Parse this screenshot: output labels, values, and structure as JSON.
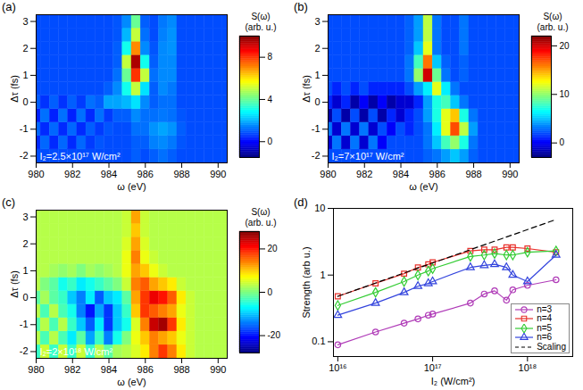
{
  "chart_data": [
    {
      "type": "heatmap",
      "panel_label": "(a)",
      "annotation": "I₂=2.5×10¹⁷ W/cm²",
      "x_label": "ω (eV)",
      "y_label": "Δτ (fs)",
      "xlim": [
        980,
        990.5
      ],
      "ylim": [
        -2.25,
        3.25
      ],
      "xticks": [
        980,
        982,
        984,
        986,
        988,
        990
      ],
      "yticks": [
        -2,
        -1,
        0,
        1,
        2,
        3
      ],
      "color": "jet",
      "x_edges": [
        979.75,
        980.25,
        980.75,
        981.25,
        981.75,
        982.25,
        982.75,
        983.25,
        983.75,
        984.25,
        984.75,
        985.25,
        985.75,
        986.25,
        986.75,
        987.25,
        987.75,
        988.25,
        988.75,
        989.25,
        989.75,
        990.25,
        990.75
      ],
      "y_edges": [
        -2.25,
        -1.75,
        -1.25,
        -0.75,
        -0.25,
        0.25,
        0.75,
        1.25,
        1.75,
        2.25,
        2.75,
        3.25
      ],
      "cells": [
        [
          0.8,
          0.8,
          0.8,
          0.8,
          0.8,
          0.8,
          0.8,
          0.8,
          0.8,
          0.8,
          0.8,
          1.0,
          0.8,
          1.0,
          1.2,
          1.0,
          0.8,
          0.8,
          0.8,
          0.8,
          0.8,
          0.8
        ],
        [
          0.4,
          1.1,
          0.4,
          1.1,
          0.4,
          1.1,
          0.6,
          0.9,
          0.8,
          0.8,
          0.8,
          1.0,
          1.0,
          1.4,
          1.5,
          1.3,
          0.9,
          0.8,
          0.8,
          0.8,
          0.8,
          0.8
        ],
        [
          1.1,
          0.4,
          1.1,
          0.4,
          1.1,
          0.4,
          1.0,
          0.6,
          0.9,
          0.8,
          0.8,
          1.2,
          1.2,
          1.6,
          1.8,
          1.6,
          1.0,
          0.8,
          0.8,
          0.8,
          0.8,
          0.8
        ],
        [
          0.3,
          1.2,
          0.3,
          1.2,
          0.3,
          1.2,
          0.4,
          1.2,
          0.6,
          1.0,
          1.0,
          1.5,
          1.2,
          1.2,
          1.3,
          1.2,
          0.9,
          0.8,
          0.8,
          0.8,
          0.8,
          0.8
        ],
        [
          1.0,
          0.5,
          1.0,
          0.5,
          1.0,
          0.6,
          1.2,
          1.0,
          1.8,
          1.8,
          2.0,
          2.5,
          1.5,
          1.0,
          1.2,
          1.2,
          0.8,
          0.8,
          0.8,
          0.8,
          0.8,
          0.8
        ],
        [
          0.8,
          0.8,
          0.8,
          0.8,
          0.8,
          0.8,
          0.8,
          0.8,
          1.0,
          1.5,
          3.0,
          5.0,
          2.5,
          1.0,
          1.5,
          1.3,
          0.8,
          0.8,
          0.8,
          0.8,
          0.8,
          0.8
        ],
        [
          0.8,
          0.8,
          0.8,
          0.8,
          0.8,
          0.8,
          0.8,
          0.8,
          0.8,
          1.2,
          4.0,
          8.0,
          5.0,
          1.2,
          1.5,
          1.5,
          0.8,
          0.8,
          0.8,
          0.8,
          0.8,
          0.8
        ],
        [
          0.8,
          0.8,
          0.8,
          0.8,
          0.8,
          0.8,
          0.8,
          0.8,
          0.8,
          1.0,
          5.0,
          9.5,
          3.0,
          1.0,
          1.5,
          1.5,
          0.8,
          0.8,
          0.8,
          0.8,
          0.8,
          0.8
        ],
        [
          0.8,
          0.8,
          0.8,
          0.8,
          0.8,
          0.8,
          0.8,
          0.8,
          0.8,
          1.0,
          3.0,
          7.0,
          1.5,
          0.9,
          1.5,
          1.6,
          0.8,
          0.8,
          0.8,
          0.8,
          0.8,
          0.8
        ],
        [
          0.8,
          0.8,
          0.8,
          0.8,
          0.8,
          0.8,
          0.8,
          0.8,
          0.8,
          0.9,
          2.0,
          5.0,
          1.2,
          0.8,
          1.4,
          1.6,
          0.8,
          0.8,
          0.8,
          0.8,
          0.8,
          0.8
        ],
        [
          0.8,
          0.8,
          0.8,
          0.8,
          0.8,
          0.8,
          0.8,
          0.8,
          0.8,
          0.9,
          1.5,
          4.0,
          1.0,
          0.8,
          1.3,
          1.5,
          0.8,
          0.8,
          0.8,
          0.8,
          0.8,
          0.8
        ]
      ],
      "colorbar": {
        "title": [
          "S(ω)",
          "(arb. u.)"
        ],
        "range": [
          -1.5,
          10
        ],
        "ticks": [
          0,
          4,
          8
        ]
      }
    },
    {
      "type": "heatmap",
      "panel_label": "(b)",
      "annotation": "I₂=7×10¹⁷ W/cm²",
      "x_label": "ω (eV)",
      "y_label": "Δτ (fs)",
      "xlim": [
        980,
        990.5
      ],
      "ylim": [
        -2.25,
        3.25
      ],
      "xticks": [
        980,
        982,
        984,
        986,
        988,
        990
      ],
      "yticks": [
        -2,
        -1,
        0,
        1,
        2,
        3
      ],
      "color": "jet",
      "x_edges": [
        979.75,
        980.25,
        980.75,
        981.25,
        981.75,
        982.25,
        982.75,
        983.25,
        983.75,
        984.25,
        984.75,
        985.25,
        985.75,
        986.25,
        986.75,
        987.25,
        987.75,
        988.25,
        988.75,
        989.25,
        989.75,
        990.25,
        990.75
      ],
      "y_edges": [
        -2.25,
        -1.75,
        -1.25,
        -0.75,
        -0.25,
        0.25,
        0.75,
        1.25,
        1.75,
        2.25,
        2.75,
        3.25
      ],
      "cells": [
        [
          2,
          2,
          2,
          2,
          2,
          2,
          2,
          2,
          2,
          2,
          2,
          2.5,
          3,
          4,
          5,
          4,
          2.5,
          2,
          2,
          2,
          2,
          2
        ],
        [
          -1,
          3,
          -1,
          3,
          -1,
          3,
          0,
          2,
          2,
          2,
          2,
          3,
          5,
          8,
          10,
          7,
          3,
          2,
          2,
          2,
          2,
          2
        ],
        [
          3,
          -1,
          3,
          -1,
          3,
          -1,
          2,
          0,
          2,
          1,
          2,
          3,
          6,
          12,
          17,
          11,
          4,
          2,
          2,
          2,
          2,
          2
        ],
        [
          -2,
          2,
          -2,
          2,
          -2,
          2,
          -2,
          1,
          -1,
          1,
          2,
          4,
          7,
          12,
          14,
          7,
          3,
          2,
          2,
          2,
          2,
          2
        ],
        [
          1,
          -1,
          1,
          -2,
          0,
          -2,
          0,
          -2,
          -1,
          -1,
          1,
          4,
          7,
          8,
          5,
          3,
          2,
          2,
          2,
          2,
          2,
          2
        ],
        [
          2,
          1,
          2,
          1,
          2,
          1,
          1,
          1,
          1,
          2,
          4,
          6,
          12,
          6,
          3,
          2,
          2,
          2,
          2,
          2,
          2,
          2
        ],
        [
          2,
          2,
          2,
          2,
          2,
          2,
          2,
          2,
          2,
          3,
          10,
          20,
          9,
          3,
          2,
          2.5,
          2,
          2,
          2,
          2,
          2,
          2
        ],
        [
          2,
          2,
          2,
          2,
          2,
          2,
          2,
          2,
          2,
          3,
          8,
          16,
          5,
          2.5,
          2,
          2.5,
          2,
          2,
          2,
          2,
          2,
          2
        ],
        [
          2,
          2,
          2,
          2,
          2,
          2,
          2,
          2,
          2,
          2.5,
          5,
          12,
          3,
          2,
          2,
          3,
          2,
          2,
          2,
          2,
          2,
          2
        ],
        [
          2,
          2,
          2,
          2,
          2,
          2,
          2,
          2,
          2,
          2.5,
          4,
          11,
          3,
          2,
          2,
          3,
          2,
          2,
          2,
          2,
          2,
          2
        ],
        [
          2,
          2,
          2,
          2,
          2,
          2,
          2,
          2,
          2,
          2.5,
          4,
          11,
          3,
          2,
          2,
          3,
          2,
          2,
          2,
          2,
          2,
          2
        ]
      ],
      "colorbar": {
        "title": [
          "S(ω)",
          "(arb. u.)"
        ],
        "range": [
          -3,
          22
        ],
        "ticks": [
          0,
          10,
          20
        ]
      }
    },
    {
      "type": "heatmap",
      "panel_label": "(c)",
      "annotation": "I₂=2×10¹⁸ W/cm²",
      "x_label": "ω (eV)",
      "y_label": "Δτ (fs)",
      "xlim": [
        980,
        990.5
      ],
      "ylim": [
        -2.25,
        3.25
      ],
      "xticks": [
        980,
        982,
        984,
        986,
        988,
        990
      ],
      "yticks": [
        -2,
        -1,
        0,
        1,
        2,
        3
      ],
      "color": "jet",
      "x_edges": [
        979.75,
        980.25,
        980.75,
        981.25,
        981.75,
        982.25,
        982.75,
        983.25,
        983.75,
        984.25,
        984.75,
        985.25,
        985.75,
        986.25,
        986.75,
        987.25,
        987.75,
        988.25,
        988.75,
        989.25,
        989.75,
        990.25,
        990.75
      ],
      "y_edges": [
        -2.25,
        -1.75,
        -1.25,
        -0.75,
        -0.25,
        0.25,
        0.75,
        1.25,
        1.75,
        2.25,
        2.75,
        3.25
      ],
      "cells": [
        [
          -4,
          4,
          -4,
          4,
          -4,
          4,
          -4,
          3,
          -2,
          2,
          3,
          5,
          8,
          14,
          18,
          14,
          8,
          4,
          3,
          3,
          3,
          3
        ],
        [
          3,
          -3,
          3,
          -3,
          -8,
          -2,
          -12,
          -4,
          -14,
          -6,
          0,
          6,
          10,
          14,
          12,
          10,
          6,
          4,
          3,
          3,
          3,
          3
        ],
        [
          -3,
          3,
          -3,
          3,
          -4,
          -10,
          -16,
          -8,
          -18,
          -10,
          -6,
          5,
          14,
          24,
          26,
          18,
          8,
          4,
          3,
          3,
          3,
          3
        ],
        [
          3,
          -3,
          3,
          -3,
          -6,
          -14,
          -20,
          -12,
          -18,
          -10,
          -4,
          10,
          18,
          16,
          14,
          12,
          6,
          4,
          3,
          3,
          3,
          3
        ],
        [
          -2,
          2,
          -2,
          -4,
          -10,
          -14,
          -8,
          -16,
          -10,
          -8,
          -2,
          12,
          18,
          22,
          20,
          16,
          8,
          4,
          3,
          3,
          3,
          3
        ],
        [
          3,
          0,
          -2,
          -6,
          -4,
          -8,
          -6,
          -4,
          -2,
          0,
          4,
          14,
          16,
          12,
          10,
          8,
          4,
          3,
          3,
          3,
          3,
          3
        ],
        [
          3,
          3,
          2,
          1,
          2,
          0,
          2,
          1,
          2,
          3,
          6,
          12,
          10,
          6,
          4,
          3,
          3,
          3,
          3,
          3,
          3,
          3
        ],
        [
          3,
          3,
          3,
          3,
          3,
          3,
          3,
          3,
          3,
          3,
          6,
          14,
          6,
          4,
          3,
          3,
          3,
          3,
          3,
          3,
          3,
          3
        ],
        [
          3,
          3,
          3,
          3,
          3,
          3,
          3,
          3,
          3,
          3,
          5,
          12,
          5,
          3,
          3,
          3,
          3,
          3,
          3,
          3,
          3,
          3
        ],
        [
          3,
          3,
          3,
          3,
          3,
          3,
          3,
          3,
          3,
          3,
          4,
          10,
          4,
          3,
          3,
          3,
          3,
          3,
          3,
          3,
          3,
          3
        ],
        [
          3,
          3,
          3,
          3,
          3,
          3,
          3,
          3,
          3,
          3,
          4,
          12,
          4,
          3,
          3,
          3,
          3,
          3,
          3,
          3,
          3,
          3
        ]
      ],
      "colorbar": {
        "title": [
          "S(ω)",
          "(arb. u.)"
        ],
        "range": [
          -28,
          28
        ],
        "ticks": [
          -20,
          0,
          20
        ]
      }
    },
    {
      "type": "line",
      "panel_label": "(d)",
      "x_label": "I₂ (W/cm²)",
      "y_label": "Strength (arb u.)",
      "log": true,
      "legend": "lower right",
      "xlim": [
        9000000000000000.0,
        3e+18
      ],
      "ylim": [
        0.06,
        10
      ],
      "xticks": [
        {
          "value": 1e+16,
          "label": "10¹⁶"
        },
        {
          "value": 1e+17,
          "label": "10¹⁷"
        },
        {
          "value": 1e+18,
          "label": "10¹⁸"
        }
      ],
      "yticks": [
        0.1,
        1,
        10
      ],
      "x": [
        1e+16,
        2.5e+16,
        5e+16,
        7e+16,
        9e+16,
        1e+17,
        2.5e+17,
        3.5e+17,
        4.5e+17,
        6e+17,
        7e+17,
        1e+18,
        2e+18
      ],
      "series": [
        {
          "name": "n=3",
          "color": "#b03cb8",
          "marker": "circle",
          "line_style": "solid",
          "values": [
            0.09,
            0.14,
            0.19,
            0.22,
            0.25,
            0.26,
            0.38,
            0.52,
            0.58,
            0.42,
            0.6,
            0.7,
            0.85
          ]
        },
        {
          "name": "n=4",
          "color": "#e8302a",
          "marker": "square",
          "line_style": "solid",
          "values": [
            0.48,
            0.75,
            1.05,
            1.3,
            1.45,
            1.55,
            2.3,
            2.4,
            2.4,
            2.6,
            2.6,
            2.5,
            2.2
          ]
        },
        {
          "name": "n=5",
          "color": "#33cc33",
          "marker": "diamond",
          "line_style": "solid",
          "values": [
            0.35,
            0.55,
            0.8,
            1.0,
            1.15,
            1.25,
            1.9,
            2.0,
            2.1,
            2.0,
            2.0,
            2.2,
            2.3
          ]
        },
        {
          "name": "n=6",
          "color": "#3344dd",
          "marker": "triangle",
          "line_style": "solid",
          "values": [
            0.25,
            0.38,
            0.55,
            0.68,
            0.75,
            0.8,
            1.3,
            1.4,
            1.45,
            1.3,
            1.0,
            0.8,
            2.0
          ]
        },
        {
          "name": "Scaling",
          "color": "#000000",
          "marker": "none",
          "line_style": "dashed",
          "x": [
            1e+16,
            2e+18
          ],
          "values": [
            0.48,
            6.8
          ]
        }
      ]
    }
  ]
}
